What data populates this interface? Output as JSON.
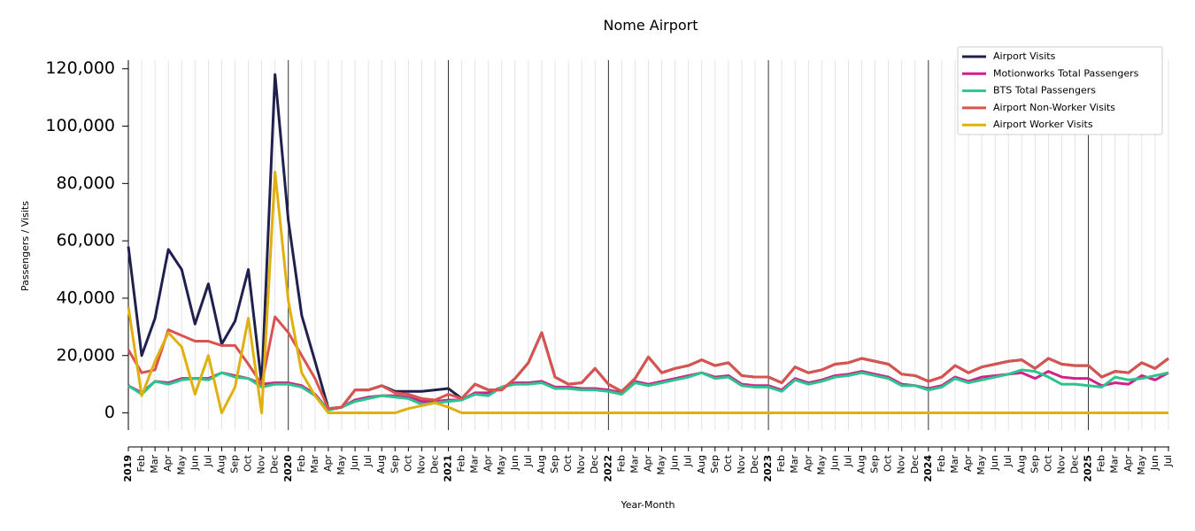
{
  "chart_data": {
    "type": "line",
    "title": "Nome Airport",
    "x_label": "Year-Month",
    "y_label": "Passengers / Visits",
    "categories": [
      "2019",
      "Feb",
      "Mar",
      "Apr",
      "May",
      "Jun",
      "Jul",
      "Aug",
      "Sep",
      "Oct",
      "Nov",
      "Dec",
      "2020",
      "Feb",
      "Mar",
      "Apr",
      "May",
      "Jun",
      "Jul",
      "Aug",
      "Sep",
      "Oct",
      "Nov",
      "Dec",
      "2021",
      "Feb",
      "Mar",
      "Apr",
      "May",
      "Jun",
      "Jul",
      "Aug",
      "Sep",
      "Oct",
      "Nov",
      "Dec",
      "2022",
      "Feb",
      "Mar",
      "Apr",
      "May",
      "Jun",
      "Jul",
      "Aug",
      "Sep",
      "Oct",
      "Nov",
      "Dec",
      "2023",
      "Feb",
      "Mar",
      "Apr",
      "May",
      "Jun",
      "Jul",
      "Aug",
      "Sep",
      "Oct",
      "Nov",
      "Dec",
      "2024",
      "Feb",
      "Mar",
      "Apr",
      "May",
      "Jun",
      "Jul",
      "Aug",
      "Sep",
      "Oct",
      "Nov",
      "Dec",
      "2025",
      "Feb",
      "Mar",
      "Apr",
      "May",
      "Jun",
      "Jul"
    ],
    "ylim": [
      -6000,
      123000
    ],
    "yticks": [
      0,
      {
        "value": 20000,
        "label": "20,000"
      },
      {
        "value": 40000,
        "label": "40,000"
      },
      {
        "value": 60000,
        "label": "60,000"
      },
      {
        "value": 80000,
        "label": "80,000"
      },
      {
        "value": 100000,
        "label": "100,000"
      },
      {
        "value": 120000,
        "label": "120,000"
      }
    ],
    "legend": "upper right",
    "series": [
      {
        "name": "Airport Visits",
        "color": "#20204f",
        "values": [
          58000,
          20000,
          33000,
          57000,
          50000,
          31000,
          45000,
          24000,
          32000,
          50000,
          10000,
          118000,
          67000,
          34000,
          18000,
          1500,
          2000,
          8000,
          8000,
          9500,
          7500,
          7500,
          7500,
          8000,
          8500,
          5000,
          10000,
          8000,
          8000,
          12000,
          17500,
          28000,
          12500,
          10000,
          10500,
          15500,
          10000,
          7500,
          12000,
          19500,
          14000,
          15500,
          16500,
          18500,
          16500,
          17500,
          13000,
          12500,
          12500,
          10500,
          16000,
          14000,
          15000,
          17000,
          17500,
          19000,
          18000,
          17000,
          13500,
          13000,
          11000,
          12500,
          16500,
          14000,
          16000,
          17000,
          18000,
          18500,
          15500,
          19000,
          17000,
          16500,
          16500,
          12500,
          14500,
          14000,
          17500,
          15500,
          19000
        ]
      },
      {
        "name": "Motionworks Total Passengers",
        "color": "#d0208a",
        "values": [
          9500,
          7000,
          11000,
          10500,
          12000,
          12000,
          12000,
          14000,
          13000,
          12000,
          10000,
          10500,
          10500,
          9500,
          6500,
          1000,
          2000,
          4500,
          5500,
          6000,
          6000,
          5500,
          4000,
          4000,
          4500,
          4500,
          7000,
          7000,
          9000,
          10500,
          10500,
          11000,
          9000,
          9000,
          8500,
          8500,
          8000,
          7000,
          11000,
          10000,
          11000,
          12000,
          13000,
          14000,
          12500,
          13000,
          10000,
          9500,
          9500,
          8000,
          12000,
          10500,
          11500,
          13000,
          13500,
          14500,
          13500,
          12500,
          10000,
          9500,
          8500,
          9500,
          12500,
          11000,
          12500,
          13000,
          13500,
          14000,
          12000,
          14500,
          12500,
          12000,
          12000,
          9500,
          10500,
          10000,
          13000,
          11500,
          14000
        ]
      },
      {
        "name": "BTS Total Passengers",
        "color": "#2bc48e",
        "values": [
          9500,
          6500,
          11000,
          10000,
          11500,
          12000,
          11500,
          14000,
          12500,
          12000,
          9000,
          10000,
          10000,
          9000,
          6000,
          1000,
          2000,
          4000,
          5000,
          6000,
          5500,
          5000,
          3000,
          3500,
          4000,
          4500,
          6500,
          6000,
          9000,
          10000,
          10000,
          10500,
          8500,
          8500,
          8000,
          8000,
          7500,
          6500,
          10500,
          9500,
          10500,
          11500,
          12500,
          14000,
          12000,
          12500,
          9500,
          9000,
          9000,
          7500,
          11500,
          10000,
          11000,
          12500,
          13000,
          14000,
          13000,
          12000,
          9500,
          9500,
          8000,
          9000,
          12000,
          10500,
          11500,
          12500,
          13500,
          15000,
          14500,
          12500,
          10000,
          10000,
          9500,
          9000,
          12500,
          11500,
          12000,
          13000,
          14000
        ]
      },
      {
        "name": "Airport Non-Worker Visits",
        "color": "#d9534f",
        "values": [
          22000,
          14000,
          15000,
          29000,
          27000,
          25000,
          25000,
          23500,
          23500,
          17000,
          10000,
          33500,
          28000,
          20000,
          12000,
          1500,
          2000,
          8000,
          8000,
          9500,
          7000,
          6500,
          5000,
          4500,
          6500,
          5000,
          10000,
          8000,
          8000,
          12000,
          17500,
          28000,
          12500,
          10000,
          10500,
          15500,
          10000,
          7500,
          12000,
          19500,
          14000,
          15500,
          16500,
          18500,
          16500,
          17500,
          13000,
          12500,
          12500,
          10500,
          16000,
          14000,
          15000,
          17000,
          17500,
          19000,
          18000,
          17000,
          13500,
          13000,
          11000,
          12500,
          16500,
          14000,
          16000,
          17000,
          18000,
          18500,
          15500,
          19000,
          17000,
          16500,
          16500,
          12500,
          14500,
          14000,
          17500,
          15500,
          19000
        ]
      },
      {
        "name": "Airport Worker Visits",
        "color": "#e0b010",
        "values": [
          37000,
          6000,
          18000,
          28000,
          23000,
          6500,
          20000,
          0,
          9000,
          33000,
          0,
          84000,
          39000,
          14000,
          6000,
          0,
          0,
          0,
          0,
          0,
          0,
          1500,
          2500,
          3500,
          2000,
          0,
          0,
          0,
          0,
          0,
          0,
          0,
          0,
          0,
          0,
          0,
          0,
          0,
          0,
          0,
          0,
          0,
          0,
          0,
          0,
          0,
          0,
          0,
          0,
          0,
          0,
          0,
          0,
          0,
          0,
          0,
          0,
          0,
          0,
          0,
          0,
          0,
          0,
          0,
          0,
          0,
          0,
          0,
          0,
          0,
          0,
          0,
          0,
          0,
          0,
          0,
          0,
          0,
          0
        ]
      }
    ]
  }
}
